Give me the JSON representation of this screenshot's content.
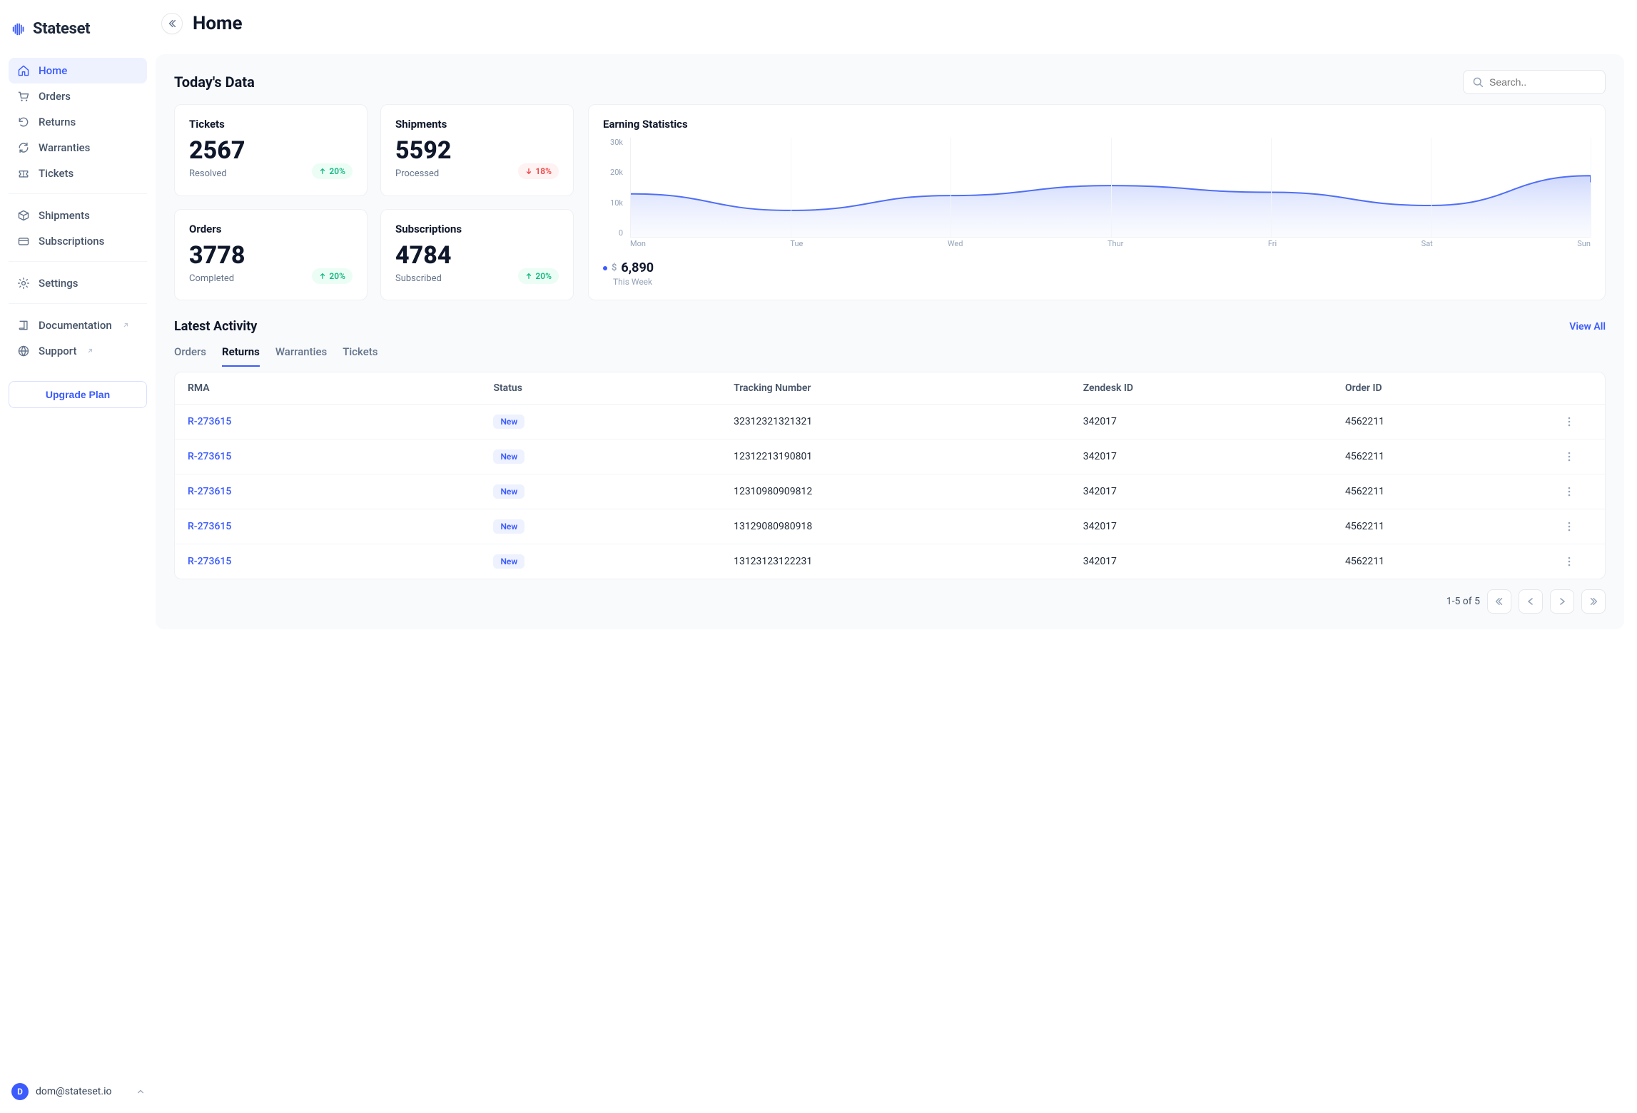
{
  "brand": {
    "name": "Stateset",
    "accent": "#3b5bfd"
  },
  "page": {
    "title": "Home"
  },
  "sidebar": {
    "groups": [
      {
        "items": [
          {
            "label": "Home",
            "icon": "home",
            "active": true
          },
          {
            "label": "Orders",
            "icon": "cart"
          },
          {
            "label": "Returns",
            "icon": "undo"
          },
          {
            "label": "Warranties",
            "icon": "refresh"
          },
          {
            "label": "Tickets",
            "icon": "ticket"
          }
        ]
      },
      {
        "items": [
          {
            "label": "Shipments",
            "icon": "box"
          },
          {
            "label": "Subscriptions",
            "icon": "card"
          }
        ]
      },
      {
        "items": [
          {
            "label": "Settings",
            "icon": "gear"
          }
        ]
      },
      {
        "items": [
          {
            "label": "Documentation",
            "icon": "book",
            "external": true
          },
          {
            "label": "Support",
            "icon": "globe",
            "external": true
          }
        ]
      }
    ],
    "upgrade_label": "Upgrade Plan"
  },
  "user": {
    "initial": "D",
    "email": "dom@stateset.io"
  },
  "search": {
    "placeholder": "Search.."
  },
  "today_section_title": "Today's Data",
  "kpis": [
    {
      "title": "Tickets",
      "value": "2567",
      "sub": "Resolved",
      "delta": "20%",
      "dir": "up"
    },
    {
      "title": "Shipments",
      "value": "5592",
      "sub": "Processed",
      "delta": "18%",
      "dir": "down"
    },
    {
      "title": "Orders",
      "value": "3778",
      "sub": "Completed",
      "delta": "20%",
      "dir": "up"
    },
    {
      "title": "Subscriptions",
      "value": "4784",
      "sub": "Subscribed",
      "delta": "20%",
      "dir": "up"
    }
  ],
  "chart": {
    "title": "Earning Statistics",
    "type": "area",
    "x_labels": [
      "Mon",
      "Tue",
      "Wed",
      "Thur",
      "Fri",
      "Sat",
      "Sun"
    ],
    "y_ticks": [
      "30k",
      "20k",
      "10k",
      "0"
    ],
    "ylim": [
      0,
      30000
    ],
    "values": [
      13000,
      8000,
      12500,
      15500,
      13500,
      9500,
      18500
    ],
    "right_edge_value": 16500,
    "line_color": "#4f6ef7",
    "fill_top_color": "#c8d3fb",
    "fill_bottom_color": "#eef2ff",
    "grid_color": "#f1f5f9",
    "axis_color": "#eef0f4",
    "label_color": "#94a3b8",
    "label_fontsize": 11,
    "line_width": 2,
    "amount_currency": "$",
    "amount": "6,890",
    "period": "This Week"
  },
  "activity": {
    "title": "Latest Activity",
    "view_all": "View All",
    "tabs": [
      "Orders",
      "Returns",
      "Warranties",
      "Tickets"
    ],
    "active_tab": 1,
    "columns": [
      "RMA",
      "Status",
      "Tracking Number",
      "Zendesk ID",
      "Order ID"
    ],
    "rows": [
      {
        "rma": "R-273615",
        "status": "New",
        "tracking": "32312321321321",
        "zendesk": "342017",
        "order": "4562211"
      },
      {
        "rma": "R-273615",
        "status": "New",
        "tracking": "12312213190801",
        "zendesk": "342017",
        "order": "4562211"
      },
      {
        "rma": "R-273615",
        "status": "New",
        "tracking": "12310980909812",
        "zendesk": "342017",
        "order": "4562211"
      },
      {
        "rma": "R-273615",
        "status": "New",
        "tracking": "13129080980918",
        "zendesk": "342017",
        "order": "4562211"
      },
      {
        "rma": "R-273615",
        "status": "New",
        "tracking": "13123123122231",
        "zendesk": "342017",
        "order": "4562211"
      }
    ],
    "status_pill_bg": "#eef2ff",
    "status_pill_color": "#3b5bfd"
  },
  "pagination": {
    "text": "1-5 of 5"
  },
  "colors": {
    "up_bg": "#ecfdf5",
    "up_fg": "#10b981",
    "down_bg": "#fef2f2",
    "down_fg": "#ef4444",
    "text_muted": "#64748b",
    "border": "#eef0f4",
    "surface": "#ffffff",
    "canvas": "#f8fafc"
  }
}
